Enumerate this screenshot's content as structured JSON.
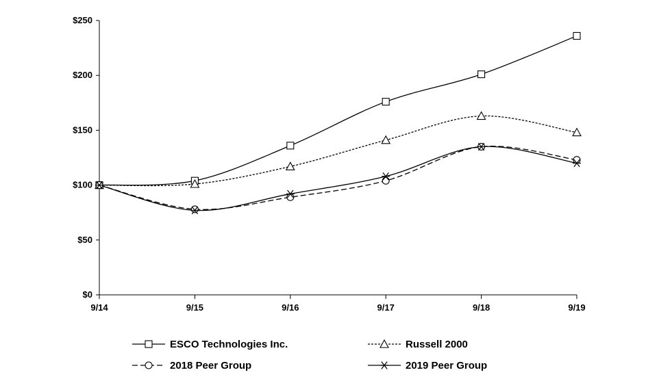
{
  "chart_data": {
    "type": "line",
    "title": "",
    "xlabel": "",
    "ylabel": "",
    "categories": [
      "9/14",
      "9/15",
      "9/16",
      "9/17",
      "9/18",
      "9/19"
    ],
    "y_ticks": [
      "$0",
      "$50",
      "$100",
      "$150",
      "$200",
      "$250"
    ],
    "ylim": [
      0,
      250
    ],
    "grid": false,
    "legend_position": "bottom",
    "series": [
      {
        "name": "ESCO Technologies Inc.",
        "marker": "square",
        "dash": "solid",
        "values": [
          100,
          104,
          136,
          176,
          201,
          236
        ]
      },
      {
        "name": "Russell 2000",
        "marker": "triangle",
        "dash": "dotted",
        "values": [
          100,
          101,
          117,
          141,
          163,
          148
        ]
      },
      {
        "name": "2018 Peer Group",
        "marker": "circle",
        "dash": "dashed",
        "values": [
          100,
          78,
          89,
          104,
          135,
          123
        ]
      },
      {
        "name": "2019 Peer Group",
        "marker": "asterisk",
        "dash": "solid",
        "values": [
          100,
          77,
          92,
          108,
          135,
          120
        ]
      }
    ]
  }
}
